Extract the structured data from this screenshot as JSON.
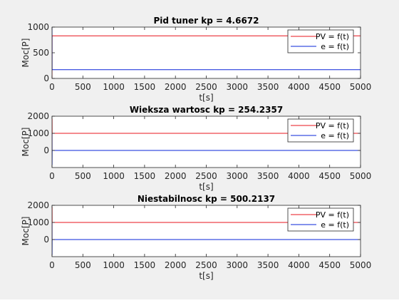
{
  "colors": {
    "figure_background": "#f0f0f0",
    "axes_background": "#ffffff",
    "axis_color": "#262626",
    "pv_color": "#e8141c",
    "e_color": "#0a24d8"
  },
  "chart_data": [
    {
      "type": "line",
      "title": "Pid tuner kp = 4.6672",
      "xlabel": "t[s]",
      "ylabel": "Moc[P]",
      "xlim": [
        0,
        5000
      ],
      "ylim": [
        0,
        1000
      ],
      "xticks": [
        0,
        500,
        1000,
        1500,
        2000,
        2500,
        3000,
        3500,
        4000,
        4500,
        5000
      ],
      "yticks": [
        0,
        500,
        1000
      ],
      "grid": false,
      "legend_position": "top-right",
      "series": [
        {
          "name": "PV = f(t)",
          "color": "#e8141c",
          "x": [
            0,
            1,
            2,
            5000
          ],
          "y": [
            0,
            830,
            830,
            830
          ]
        },
        {
          "name": "e = f(t)",
          "color": "#0a24d8",
          "x": [
            0,
            1,
            2,
            5000
          ],
          "y": [
            1000,
            170,
            170,
            170
          ]
        }
      ]
    },
    {
      "type": "line",
      "title": "Wieksza wartosc kp = 254.2357",
      "xlabel": "t[s]",
      "ylabel": "Moc[P]",
      "xlim": [
        0,
        5000
      ],
      "ylim": [
        -1000,
        2000
      ],
      "xticks": [
        0,
        500,
        1000,
        1500,
        2000,
        2500,
        3000,
        3500,
        4000,
        4500,
        5000
      ],
      "yticks": [
        0,
        1000,
        2000
      ],
      "grid": false,
      "legend_position": "top-right",
      "series": [
        {
          "name": "PV = f(t)",
          "color": "#e8141c",
          "x": [
            0,
            1,
            2,
            5000
          ],
          "y": [
            0,
            1850,
            1000,
            1000
          ]
        },
        {
          "name": "e = f(t)",
          "color": "#0a24d8",
          "x": [
            0,
            1,
            2,
            5000
          ],
          "y": [
            1000,
            -850,
            0,
            0
          ]
        }
      ]
    },
    {
      "type": "line",
      "title": "Niestabilnosc kp = 500.2137",
      "xlabel": "t[s]",
      "ylabel": "Moc[P]",
      "xlim": [
        0,
        5000
      ],
      "ylim": [
        -1000,
        2000
      ],
      "xticks": [
        0,
        500,
        1000,
        1500,
        2000,
        2500,
        3000,
        3500,
        4000,
        4500,
        5000
      ],
      "yticks": [
        0,
        1000,
        2000
      ],
      "grid": false,
      "legend_position": "top-right",
      "series": [
        {
          "name": "PV = f(t)",
          "color": "#e8141c",
          "x": [
            0,
            1,
            2,
            5000
          ],
          "y": [
            0,
            1900,
            1000,
            1000
          ]
        },
        {
          "name": "e = f(t)",
          "color": "#0a24d8",
          "x": [
            0,
            1,
            2,
            5000
          ],
          "y": [
            1000,
            -900,
            0,
            0
          ]
        }
      ]
    }
  ]
}
